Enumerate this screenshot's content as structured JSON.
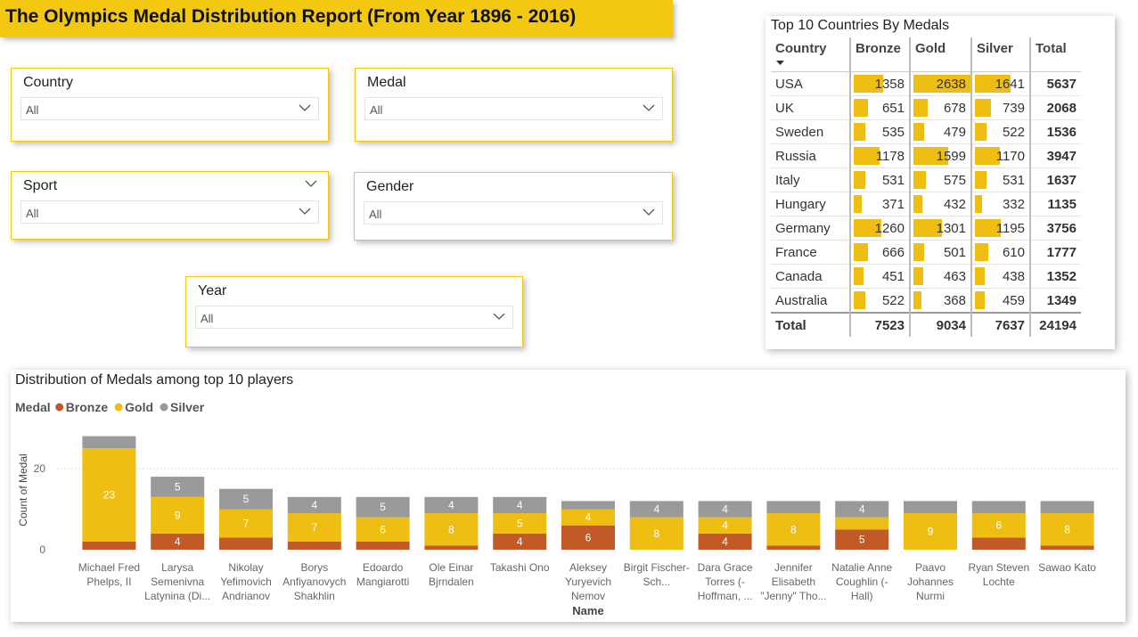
{
  "header": {
    "title": "The Olympics Medal Distribution Report (From Year 1896 - 2016)"
  },
  "filters": [
    {
      "label": "Country",
      "value": "All"
    },
    {
      "label": "Medal",
      "value": "All"
    },
    {
      "label": "Sport",
      "value": "All"
    },
    {
      "label": "Gender",
      "value": "All"
    },
    {
      "label": "Year",
      "value": "All"
    }
  ],
  "table": {
    "title": "Top 10 Countries By Medals",
    "columns": [
      "Country",
      "Bronze",
      "Gold",
      "Silver",
      "Total"
    ],
    "rows": [
      [
        "USA",
        1358,
        2638,
        1641,
        5637
      ],
      [
        "UK",
        651,
        678,
        739,
        2068
      ],
      [
        "Sweden",
        535,
        479,
        522,
        1536
      ],
      [
        "Russia",
        1178,
        1599,
        1170,
        3947
      ],
      [
        "Italy",
        531,
        575,
        531,
        1637
      ],
      [
        "Hungary",
        371,
        432,
        332,
        1135
      ],
      [
        "Germany",
        1260,
        1301,
        1195,
        3756
      ],
      [
        "France",
        666,
        501,
        610,
        1777
      ],
      [
        "Canada",
        451,
        463,
        438,
        1352
      ],
      [
        "Australia",
        522,
        368,
        459,
        1349
      ]
    ],
    "total": [
      "Total",
      7523,
      9034,
      7637,
      24194
    ],
    "bar_color": "#efbe12"
  },
  "chart_data": {
    "type": "bar",
    "stacked": true,
    "title": "Distribution of Medals among top 10 players",
    "legend_title": "Medal",
    "x_label": "Name",
    "y_label": "Count of Medal",
    "categories": [
      "Michael Fred Phelps, II",
      "Larysa Semenivna Latynina (Di...",
      "Nikolay Yefimovich Andrianov",
      "Borys Anfiyanovych Shakhlin",
      "Edoardo Mangiarotti",
      "Ole Einar Bjrndalen",
      "Takashi Ono",
      "Aleksey Yuryevich Nemov",
      "Birgit Fischer-Sch...",
      "Dara Grace Torres (-Hoffman, ...",
      "Jennifer Elisabeth \"Jenny\" Tho...",
      "Natalie Anne Coughlin (-Hall)",
      "Paavo Johannes Nurmi",
      "Ryan Steven Lochte",
      "Sawao Kato"
    ],
    "series": [
      {
        "name": "Bronze",
        "color": "#c15a27",
        "values": [
          2,
          4,
          3,
          2,
          2,
          1,
          4,
          6,
          0,
          4,
          1,
          5,
          0,
          3,
          1
        ]
      },
      {
        "name": "Gold",
        "color": "#efbe12",
        "values": [
          23,
          9,
          7,
          7,
          6,
          8,
          5,
          4,
          8,
          4,
          8,
          3,
          9,
          6,
          8
        ]
      },
      {
        "name": "Silver",
        "color": "#9a9a9a",
        "values": [
          3,
          5,
          5,
          4,
          5,
          4,
          4,
          2,
          4,
          4,
          3,
          4,
          3,
          3,
          3
        ]
      }
    ],
    "ylim": [
      0,
      30
    ],
    "yticks": [
      0,
      20
    ],
    "grid": true
  }
}
